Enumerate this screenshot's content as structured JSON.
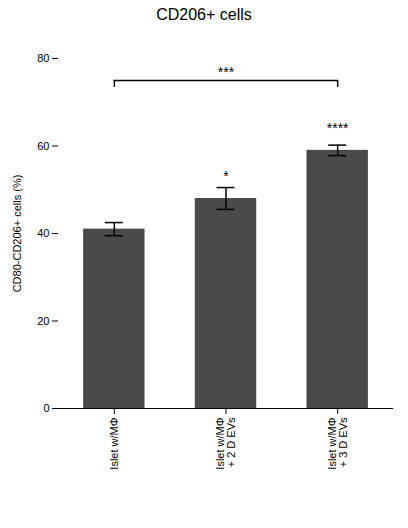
{
  "chart_data": {
    "type": "bar",
    "title": "CD206+ cells",
    "ylabel": "CD80-CD206+ cells (%)",
    "categories": [
      "Islet w/MΦ",
      "Islet w/MΦ\n+ 2 D EVs",
      "Islet w/MΦ\n+ 3 D EVs"
    ],
    "values": [
      41.0,
      48.0,
      59.0
    ],
    "errors": [
      1.5,
      2.5,
      1.2
    ],
    "color": "#4a4a4a",
    "ylim": [
      0,
      80
    ],
    "yticks": [
      0,
      20,
      40,
      60,
      80
    ],
    "annotations": [
      {
        "text": "*",
        "x": 1,
        "y": 52
      },
      {
        "text": "****",
        "x": 2,
        "y": 63
      }
    ],
    "bracket": {
      "x1": 0,
      "x2": 2,
      "y": 75,
      "text": "***"
    }
  }
}
